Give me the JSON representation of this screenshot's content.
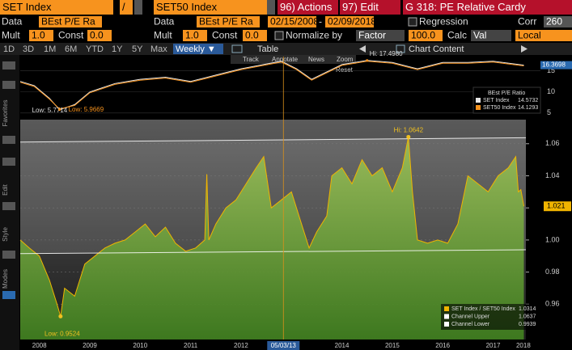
{
  "header": {
    "security1": "SET Index",
    "slash": "/",
    "security2": "SET50 Index",
    "actions": "96) Actions",
    "edit": "97) Edit",
    "function": "G 318: PE Relative Cardy"
  },
  "row2": {
    "data1_label": "Data",
    "data1": "BEst P/E Ra",
    "data2_label": "Data",
    "data2": "BEst P/E Ra",
    "start_date": "02/15/2008",
    "dash": "-",
    "end_date": "02/09/2018",
    "regression": "Regression",
    "corr_label": "Corr",
    "corr": "260"
  },
  "row3": {
    "mult1_label": "Mult",
    "mult1": "1.0",
    "const1_label": "Const",
    "const1": "0.0",
    "mult2_label": "Mult",
    "mult2": "1.0",
    "const2_label": "Const",
    "const2": "0.0",
    "normalize": "Normalize by",
    "factor": "Factor",
    "factor_value": "100.0",
    "calc_label": "Calc",
    "calc": "Val",
    "local": "Local"
  },
  "tabs": [
    "1D",
    "3D",
    "1M",
    "6M",
    "YTD",
    "1Y",
    "5Y",
    "Max"
  ],
  "weekly": "Weekly ▼",
  "table": "Table",
  "chart_content": "Chart Content",
  "chart_tools": [
    "Track",
    "Annotate",
    "News",
    "Zoom"
  ],
  "reset": "Reset",
  "left_panel": [
    "Favorites",
    "Edit",
    "Style",
    "Modes"
  ],
  "chart_data": [
    {
      "type": "line",
      "legend_title": "BEst P/E Ratio",
      "x": [
        2008.12,
        2008.4,
        2008.7,
        2008.9,
        2009.2,
        2009.5,
        2010.0,
        2010.5,
        2011.0,
        2011.5,
        2012.0,
        2012.5,
        2013.3,
        2013.6,
        2013.9,
        2014.5,
        2015.0,
        2015.5,
        2016.0,
        2016.5,
        2017.0,
        2017.5,
        2018.11
      ],
      "series": [
        {
          "name": "SET Index",
          "color": "#e6e6e6",
          "legend_value": 14.5732,
          "values": [
            12.5,
            11.5,
            8.5,
            5.7714,
            7,
            10,
            12,
            13,
            13.5,
            12.5,
            14,
            15.5,
            17.3,
            15.5,
            13,
            16.5,
            17.498,
            17,
            15.5,
            17,
            17,
            17.3,
            16.3698
          ]
        },
        {
          "name": "SET50 Index",
          "color": "#f7931e",
          "legend_value": 14.1293,
          "values": [
            12.3,
            11.3,
            8.3,
            5.9669,
            6.8,
            9.8,
            11.8,
            12.8,
            13.3,
            12.3,
            13.8,
            15.3,
            17.1,
            15.3,
            12.8,
            16.3,
            17.3,
            16.8,
            15.3,
            16.8,
            16.8,
            17.1,
            16.2
          ]
        }
      ],
      "annotations": [
        {
          "label": "Low: 5.7714",
          "x": 2008.9,
          "y": 5.7714
        },
        {
          "label": "Low: 5.9669",
          "x": 2008.9,
          "y": 5.9669
        },
        {
          "label": "Hi: 17.4980",
          "x": 2015.0,
          "y": 17.498
        }
      ],
      "current_value": 16.3698,
      "xlim": [
        2008.12,
        2018.15
      ],
      "ylim": [
        4,
        18.4
      ],
      "yticks": [
        5,
        10,
        15
      ]
    },
    {
      "type": "area",
      "x": [
        2008.12,
        2008.3,
        2008.5,
        2008.7,
        2008.85,
        2008.92,
        2009.0,
        2009.2,
        2009.4,
        2009.6,
        2009.8,
        2010.0,
        2010.2,
        2010.4,
        2010.6,
        2010.8,
        2011.0,
        2011.2,
        2011.4,
        2011.6,
        2011.78,
        2011.82,
        2011.86,
        2012.0,
        2012.2,
        2012.4,
        2012.6,
        2012.8,
        2012.95,
        2013.1,
        2013.3,
        2013.5,
        2013.7,
        2013.85,
        2014.0,
        2014.2,
        2014.3,
        2014.5,
        2014.7,
        2014.9,
        2015.1,
        2015.3,
        2015.5,
        2015.7,
        2015.82,
        2015.9,
        2016.0,
        2016.2,
        2016.4,
        2016.6,
        2016.8,
        2017.0,
        2017.2,
        2017.4,
        2017.6,
        2017.8,
        2017.95,
        2018.0,
        2018.05,
        2018.11
      ],
      "series": [
        {
          "name": "SET Index / SET50 Index",
          "color": "#f0b400",
          "legend_value": 1.0314,
          "values": [
            1.0,
            0.995,
            0.99,
            0.975,
            0.96,
            0.9524,
            0.97,
            0.965,
            0.985,
            0.99,
            0.995,
            0.998,
            1.0,
            1.005,
            1.01,
            1.002,
            1.008,
            0.998,
            0.993,
            0.995,
            1.0,
            1.041,
            1.0,
            1.01,
            1.02,
            1.025,
            1.035,
            1.045,
            1.052,
            1.02,
            1.025,
            1.03,
            1.01,
            0.995,
            1.005,
            1.015,
            1.04,
            1.045,
            1.035,
            1.05,
            1.04,
            1.045,
            1.03,
            1.045,
            1.0642,
            1.03,
            1.0,
            0.998,
            1.0,
            0.998,
            1.01,
            1.04,
            1.035,
            1.03,
            1.04,
            1.045,
            1.052,
            1.03,
            1.0314,
            1.021
          ]
        }
      ],
      "channels": [
        {
          "name": "Channel Upper",
          "color": "#ffffff",
          "legend_value": 1.0637,
          "x": [
            2008.12,
            2018.15
          ],
          "values": [
            1.061,
            1.0637
          ]
        },
        {
          "name": "Channel Lower",
          "color": "#ffffff",
          "legend_value": 0.9939,
          "x": [
            2008.12,
            2018.15
          ],
          "values": [
            0.9915,
            0.9939
          ]
        }
      ],
      "annotations": [
        {
          "label": "Hi: 1.0642",
          "x": 2015.82,
          "y": 1.0642
        },
        {
          "label": "Low: 0.9524",
          "x": 2008.92,
          "y": 0.9524
        }
      ],
      "cursor": {
        "x": 2013.34,
        "label": "05/03/13"
      },
      "current_value": 1.021,
      "xlim": [
        2008.12,
        2018.15
      ],
      "ylim": [
        0.938,
        1.075
      ],
      "xticks": [
        {
          "value": 2008.5,
          "label": "2008"
        },
        {
          "value": 2009.5,
          "label": "2009"
        },
        {
          "value": 2010.5,
          "label": "2010"
        },
        {
          "value": 2011.5,
          "label": "2011"
        },
        {
          "value": 2012.5,
          "label": "2012"
        },
        {
          "value": 2013.5,
          "label": "2013"
        },
        {
          "value": 2014.5,
          "label": "2014"
        },
        {
          "value": 2015.5,
          "label": "2015"
        },
        {
          "value": 2016.5,
          "label": "2016"
        },
        {
          "value": 2017.5,
          "label": "2017"
        },
        {
          "value": 2018.1,
          "label": "2018"
        }
      ],
      "yticks": [
        0.96,
        0.98,
        {
          "value": 1.0,
          "label": "1.00"
        },
        1.02,
        1.04,
        1.06
      ],
      "grid": true
    }
  ]
}
